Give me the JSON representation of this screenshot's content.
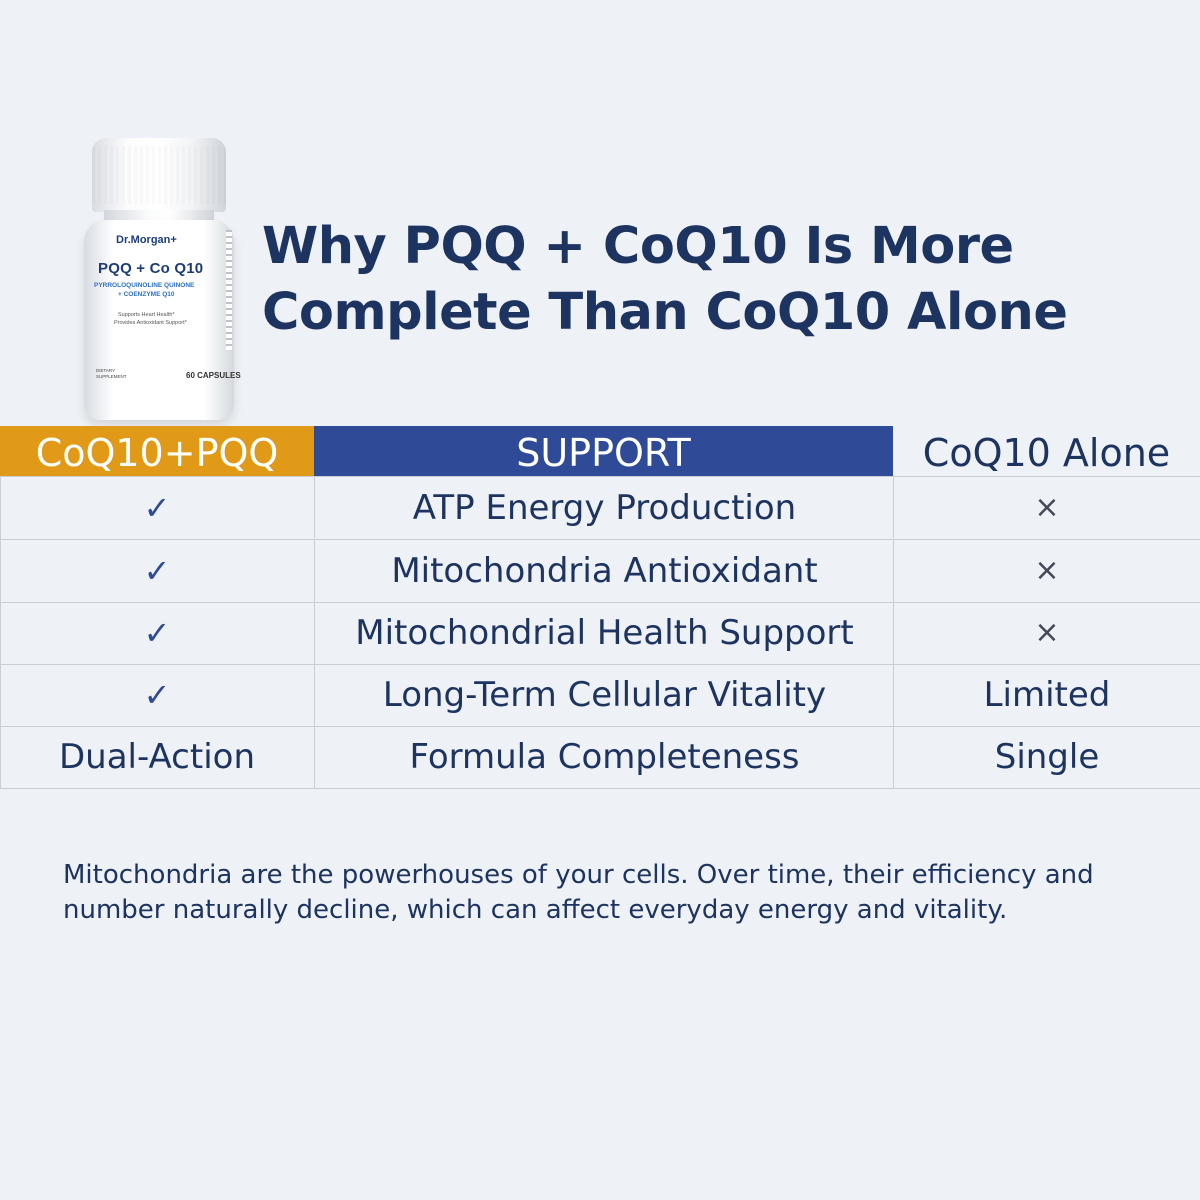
{
  "product": {
    "brand": "Dr.Morgan+",
    "name": "PQQ + Co Q10",
    "subtitle_line1": "PYRROLOQUINOLINE QUINONE",
    "subtitle_line2": "+ COENZYME Q10",
    "benefit1": "Supports Heart Health*",
    "benefit2": "Provides Antioxidant Support*",
    "dietary_line1": "DIETARY",
    "dietary_line2": "SUPPLEMENT",
    "count": "60 CAPSULES"
  },
  "headline": {
    "line1": "Why PQQ + CoQ10 Is More",
    "line2": "Complete Than CoQ10 Alone"
  },
  "table": {
    "headers": [
      "CoQ10+PQQ",
      "SUPPORT",
      "CoQ10 Alone"
    ],
    "rows": [
      {
        "combo": "✓",
        "support": "ATP Energy Production",
        "alone": "×"
      },
      {
        "combo": "✓",
        "support": "Mitochondria Antioxidant",
        "alone": "×"
      },
      {
        "combo": "✓",
        "support": "Mitochondrial Health Support",
        "alone": "×"
      },
      {
        "combo": "✓",
        "support": "Long-Term Cellular Vitality",
        "alone": "Limited"
      },
      {
        "combo": "Dual-Action",
        "support": "Formula Completeness",
        "alone": "Single"
      }
    ]
  },
  "note": {
    "line1": "Mitochondria are the powerhouses of your cells. Over time, their efficiency and",
    "line2": "number naturally decline, which can affect everyday  energy and vitality."
  },
  "colors": {
    "background": "#eef1f5",
    "navy_text": "#1d3461",
    "orange_header": "#e09a17",
    "blue_header": "#2f4a96"
  }
}
